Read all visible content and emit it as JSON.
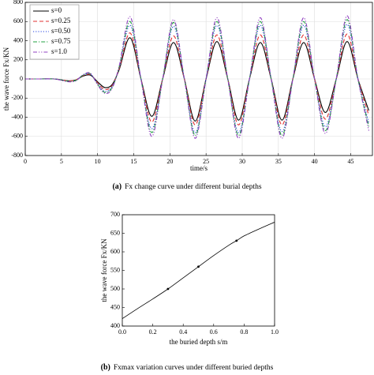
{
  "chart_data": [
    {
      "type": "line",
      "xlabel": "time/s",
      "ylabel": "the wave force Fx/KN",
      "caption_label": "(a)",
      "caption": "Fx change curve under different burial depths",
      "xlim": [
        0,
        48
      ],
      "xticks": [
        0,
        5,
        10,
        15,
        20,
        25,
        30,
        35,
        40,
        45
      ],
      "ylim": [
        -800,
        800
      ],
      "yticks": [
        -800,
        -600,
        -400,
        -200,
        0,
        200,
        400,
        600,
        800
      ],
      "grid": true,
      "legend": "upper-left",
      "x": [
        0,
        2,
        4,
        5,
        6,
        7,
        8,
        9,
        10,
        11,
        12,
        13,
        14.5,
        16,
        17.5,
        19,
        20.5,
        22,
        23.5,
        25,
        26.5,
        28,
        29.5,
        31,
        32.5,
        34,
        35.5,
        37,
        38.5,
        40,
        41.5,
        43,
        44.5,
        46,
        47.5
      ],
      "series": [
        {
          "name": "s=0",
          "color": "#000000",
          "dash": "solid",
          "values": [
            0,
            0,
            0,
            -10,
            -20,
            -10,
            30,
            40,
            -30,
            -90,
            -60,
            100,
            430,
            0,
            -390,
            0,
            380,
            0,
            -440,
            0,
            390,
            0,
            -430,
            0,
            380,
            0,
            -430,
            0,
            380,
            0,
            -350,
            0,
            390,
            0,
            -330
          ]
        },
        {
          "name": "s=0.25",
          "color": "#e03030",
          "dash": "dashed",
          "values": [
            0,
            0,
            0,
            -10,
            -20,
            -10,
            35,
            45,
            -40,
            -110,
            -70,
            110,
            480,
            0,
            -450,
            0,
            450,
            0,
            -480,
            0,
            460,
            0,
            -480,
            0,
            460,
            0,
            -480,
            0,
            460,
            0,
            -420,
            0,
            470,
            0,
            -380
          ]
        },
        {
          "name": "s=0.50",
          "color": "#2040e0",
          "dash": "dotted",
          "values": [
            0,
            0,
            0,
            -10,
            -25,
            -15,
            40,
            50,
            -50,
            -130,
            -80,
            120,
            560,
            0,
            -520,
            0,
            550,
            0,
            -560,
            0,
            560,
            0,
            -560,
            0,
            560,
            0,
            -550,
            0,
            560,
            0,
            -500,
            0,
            570,
            0,
            -460
          ]
        },
        {
          "name": "s=0.75",
          "color": "#20a040",
          "dash": "dashdot",
          "values": [
            0,
            0,
            0,
            -10,
            -25,
            -15,
            40,
            55,
            -55,
            -140,
            -90,
            130,
            600,
            0,
            -560,
            0,
            590,
            0,
            -590,
            0,
            600,
            0,
            -590,
            0,
            600,
            0,
            -590,
            0,
            600,
            0,
            -540,
            0,
            620,
            0,
            -500
          ]
        },
        {
          "name": "s=1.0",
          "color": "#9040c0",
          "dash": "dashdotdot",
          "values": [
            0,
            0,
            0,
            -15,
            -30,
            -20,
            45,
            60,
            -60,
            -150,
            -100,
            140,
            650,
            0,
            -600,
            0,
            620,
            0,
            -620,
            0,
            640,
            0,
            -620,
            0,
            640,
            0,
            -620,
            0,
            640,
            0,
            -570,
            0,
            660,
            0,
            -540
          ]
        }
      ]
    },
    {
      "type": "line",
      "xlabel": "the buried depth s/m",
      "ylabel": "the wave force Fx/KN",
      "caption_label": "(b)",
      "caption": "Fxmax variation curves under different buried depths",
      "xlim": [
        0,
        1
      ],
      "xticks": [
        {
          "value": 0,
          "label": "0.0"
        },
        0.2,
        0.4,
        0.6,
        0.8,
        {
          "value": 1,
          "label": "1.0"
        }
      ],
      "ylim": [
        400,
        700
      ],
      "yticks": [
        400,
        450,
        500,
        550,
        600,
        650,
        700
      ],
      "grid": false,
      "color": "#000000",
      "x": [
        0,
        0.1,
        0.2,
        0.3,
        0.4,
        0.5,
        0.6,
        0.7,
        0.75,
        0.8,
        0.9,
        1.0
      ],
      "values": [
        420,
        447,
        473,
        500,
        530,
        560,
        590,
        618,
        630,
        643,
        662,
        680
      ],
      "points": {
        "x": [
          0.3,
          0.5,
          0.75
        ],
        "values": [
          500,
          560,
          630
        ]
      }
    }
  ]
}
